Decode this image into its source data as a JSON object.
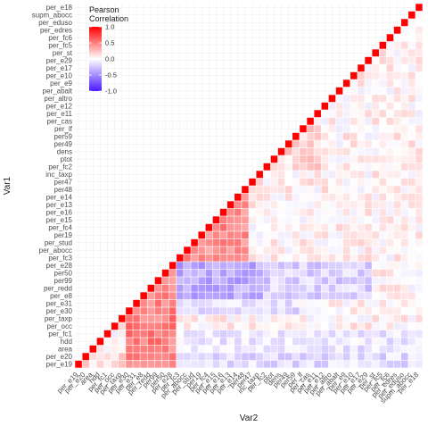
{
  "chart_data": {
    "type": "heatmap",
    "title": "",
    "xlabel": "Var2",
    "ylabel": "Var1",
    "x_categories": [
      "per_e19",
      "per_e20",
      "area",
      "hdd",
      "per_fc1",
      "per_occ",
      "per_taxp",
      "per_e30",
      "per_e31",
      "per_e8",
      "per_redd",
      "per99",
      "per50",
      "per_e28",
      "per_fc3",
      "per_abocc",
      "per_stud",
      "per19",
      "per_fc4",
      "per_e15",
      "per_e16",
      "per_e13",
      "per_e14",
      "per48",
      "per47",
      "inc_taxp",
      "per_fc2",
      "ptot",
      "dens",
      "per49",
      "per59",
      "per_lf",
      "per_cas",
      "per_e11",
      "per_e12",
      "per_altro",
      "per_abalt",
      "per_e9",
      "per_e10",
      "per_e17",
      "per_e29",
      "per_st",
      "per_fc5",
      "per_fc6",
      "per_edres",
      "per_eduso",
      "supm_abocc",
      "per_e18"
    ],
    "y_categories_bottom_to_top": [
      "per_e19",
      "per_e20",
      "area",
      "hdd",
      "per_fc1",
      "per_occ",
      "per_taxp",
      "per_e30",
      "per_e31",
      "per_e8",
      "per_redd",
      "per99",
      "per50",
      "per_e28",
      "per_fc3",
      "per_abocc",
      "per_stud",
      "per19",
      "per_fc4",
      "per_e15",
      "per_e16",
      "per_e13",
      "per_e14",
      "per48",
      "per47",
      "inc_taxp",
      "per_fc2",
      "ptot",
      "dens",
      "per49",
      "per59",
      "per_lf",
      "per_cas",
      "per_e11",
      "per_e12",
      "per_altro",
      "per_abalt",
      "per_e9",
      "per_e10",
      "per_e17",
      "per_e29",
      "per_st",
      "per_fc5",
      "per_fc6",
      "per_edres",
      "per_eduso",
      "supm_abocc",
      "per_e18"
    ],
    "x_tick_labels_shown": [
      "per_e19",
      "per_e20",
      "area",
      "hdd",
      "per_fc1",
      "per_occ",
      "per_taxp",
      "per_e30",
      "per_e31",
      "per_e8",
      "per_redd",
      "per99",
      "per50",
      "per_e28",
      "per_fc3",
      "per_abocc",
      "per_stud",
      "per19",
      "per_fc4",
      "per_e15",
      "per_e16",
      "per_e13",
      "per_e14",
      "per48",
      "per47",
      "inc_taxp",
      "per_fc2",
      "ptot",
      "dens",
      "per49",
      "per59",
      "per_lf",
      "per_cas",
      "per_e11",
      "per_e12",
      "per_altro",
      "per_abalt",
      "per_e9",
      "per_e10",
      "per_e17",
      "per_e29",
      "per_st",
      "per_fc5",
      "per_fc6",
      "per_edres",
      "per_eduso",
      "supm_abocc",
      "per_e18"
    ],
    "y_tick_labels_shown": [
      "per_e19",
      "per_e20",
      "area",
      "hdd",
      "per_fc1",
      "per_occ",
      "per_taxp",
      "per_e30",
      "per_e31",
      "per_e8",
      "per_redd",
      "per99",
      "per50",
      "per_e28",
      "per_fc3",
      "per_abocc",
      "per_stud",
      "per19",
      "per_fc4",
      "per_e15",
      "per_e16",
      "per_e13",
      "per_e14",
      "per48",
      "per47",
      "inc_taxp",
      "per_fc2",
      "ptot",
      "dens",
      "per49",
      "per59",
      "per_lf",
      "per_cas",
      "per_e11",
      "per_e12",
      "per_altro",
      "per_abalt",
      "per_e9",
      "per_e10",
      "per_e17",
      "per_e29",
      "per_st",
      "per_fc5",
      "per_fc6",
      "per_edres",
      "per_eduso",
      "supm_abocc",
      "per_e18"
    ],
    "triangle": "lower-right (row index >= column index, diagonal = 1.0)",
    "value_range": [
      -1.0,
      1.0
    ],
    "grid": true,
    "color_scale": {
      "low": "#4b19ff",
      "mid": "#ffffff",
      "high": "#ff0000"
    },
    "legend": {
      "title": "Pearson\nCorrelation",
      "placement": "top-left inside plot",
      "ticks": [
        "1.0",
        "0.5",
        "0.0",
        "-0.5",
        "-1.0"
      ],
      "tick_values": [
        1.0,
        0.5,
        0.0,
        -0.5,
        -1.0
      ]
    },
    "block_estimates": [
      {
        "rows": "per_fc3..per_e14",
        "cols": "per_e28..per_fc3 and up to row",
        "approx_value": 0.45
      },
      {
        "rows": "per_e28..per_e8",
        "cols": "per_e31..per_e28",
        "approx_value": 0.5
      },
      {
        "rows": "per_e28..per_e8",
        "cols": "per_fc3..per_fc4",
        "approx_value": -0.35
      },
      {
        "rows": "area..per_fc1",
        "cols": "per_e31..per_e28",
        "approx_value": 0.2
      },
      {
        "rows": "per_e19..per_e20",
        "cols": "per_fc3..per_e18",
        "approx_value": -0.15
      },
      {
        "rows": "inc_taxp..per_e18",
        "cols": "upper region",
        "approx_value": 0.05
      }
    ]
  }
}
